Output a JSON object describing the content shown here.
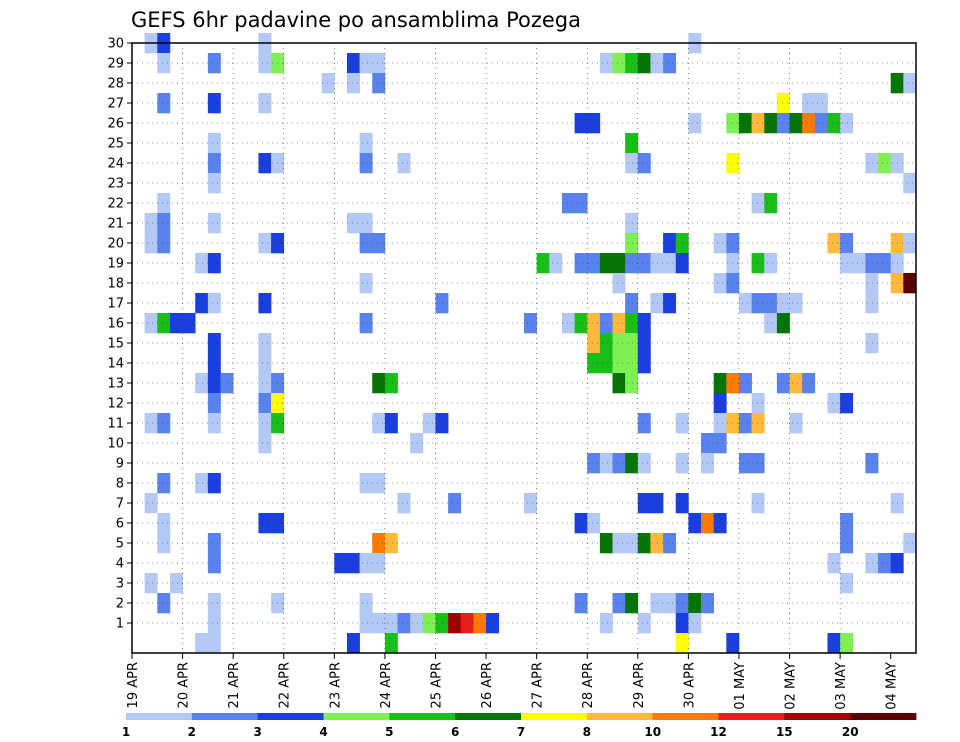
{
  "chart_data": {
    "type": "heatmap",
    "title": "GEFS 6hr padavine po ansamblima Pozega",
    "xlabel": "",
    "ylabel": "",
    "x_ticks": [
      "19 APR",
      "20 APR",
      "21 APR",
      "22 APR",
      "23 APR",
      "24 APR",
      "25 APR",
      "26 APR",
      "27 APR",
      "28 APR",
      "29 APR",
      "30 APR",
      "01 MAY",
      "02 MAY",
      "03 MAY",
      "04 MAY"
    ],
    "y_ticks": [
      "1",
      "2",
      "3",
      "4",
      "5",
      "6",
      "7",
      "8",
      "9",
      "10",
      "11",
      "12",
      "13",
      "14",
      "15",
      "16",
      "17",
      "18",
      "19",
      "20",
      "21",
      "22",
      "23",
      "24",
      "25",
      "26",
      "27",
      "28",
      "29",
      "30"
    ],
    "ylim": [
      0,
      30
    ],
    "xlim_steps": [
      0,
      61
    ],
    "steps_per_day": 4,
    "legend": {
      "position": "bottom",
      "labels": [
        "1",
        "2",
        "3",
        "4",
        "5",
        "6",
        "7",
        "8",
        "10",
        "12",
        "15",
        "20"
      ],
      "colors": [
        "#b3c8f5",
        "#5a82ec",
        "#1a3fdc",
        "#7ff054",
        "#19be19",
        "#067406",
        "#ffff00",
        "#ffb93c",
        "#ff7a00",
        "#e51e1e",
        "#a00000",
        "#5a0000"
      ]
    },
    "grid": true,
    "cells": [
      [
        1,
        30,
        1
      ],
      [
        2,
        30,
        3
      ],
      [
        10,
        30,
        1
      ],
      [
        44,
        30,
        1
      ],
      [
        2,
        29,
        1
      ],
      [
        6,
        29,
        2
      ],
      [
        10,
        29,
        1
      ],
      [
        11,
        29,
        4
      ],
      [
        17,
        29,
        3
      ],
      [
        18,
        29,
        1
      ],
      [
        19,
        29,
        1
      ],
      [
        37,
        29,
        1
      ],
      [
        38,
        29,
        4
      ],
      [
        39,
        29,
        5
      ],
      [
        40,
        29,
        6
      ],
      [
        41,
        29,
        1
      ],
      [
        42,
        29,
        2
      ],
      [
        15,
        28,
        1
      ],
      [
        17,
        28,
        1
      ],
      [
        19,
        28,
        2
      ],
      [
        60,
        28,
        6
      ],
      [
        61,
        28,
        1
      ],
      [
        2,
        27,
        2
      ],
      [
        6,
        27,
        3
      ],
      [
        10,
        27,
        1
      ],
      [
        51,
        27,
        7
      ],
      [
        53,
        27,
        1
      ],
      [
        54,
        27,
        1
      ],
      [
        35,
        26,
        3
      ],
      [
        36,
        26,
        3
      ],
      [
        44,
        26,
        1
      ],
      [
        47,
        26,
        4
      ],
      [
        48,
        26,
        6
      ],
      [
        49,
        26,
        8
      ],
      [
        50,
        26,
        6
      ],
      [
        51,
        26,
        2
      ],
      [
        52,
        26,
        6
      ],
      [
        53,
        26,
        9
      ],
      [
        54,
        26,
        2
      ],
      [
        55,
        26,
        5
      ],
      [
        56,
        26,
        1
      ],
      [
        6,
        25,
        1
      ],
      [
        18,
        25,
        1
      ],
      [
        39,
        25,
        5
      ],
      [
        6,
        24,
        2
      ],
      [
        10,
        24,
        3
      ],
      [
        11,
        24,
        1
      ],
      [
        18,
        24,
        2
      ],
      [
        21,
        24,
        1
      ],
      [
        39,
        24,
        1
      ],
      [
        40,
        24,
        2
      ],
      [
        47,
        24,
        7
      ],
      [
        58,
        24,
        1
      ],
      [
        59,
        24,
        4
      ],
      [
        60,
        24,
        1
      ],
      [
        6,
        23,
        1
      ],
      [
        61,
        23,
        1
      ],
      [
        2,
        22,
        1
      ],
      [
        34,
        22,
        2
      ],
      [
        35,
        22,
        2
      ],
      [
        49,
        22,
        1
      ],
      [
        50,
        22,
        5
      ],
      [
        1,
        21,
        1
      ],
      [
        2,
        21,
        2
      ],
      [
        6,
        21,
        1
      ],
      [
        17,
        21,
        1
      ],
      [
        18,
        21,
        1
      ],
      [
        39,
        21,
        1
      ],
      [
        1,
        20,
        1
      ],
      [
        2,
        20,
        2
      ],
      [
        10,
        20,
        1
      ],
      [
        11,
        20,
        3
      ],
      [
        18,
        20,
        2
      ],
      [
        19,
        20,
        2
      ],
      [
        39,
        20,
        4
      ],
      [
        42,
        20,
        3
      ],
      [
        43,
        20,
        5
      ],
      [
        46,
        20,
        1
      ],
      [
        47,
        20,
        2
      ],
      [
        55,
        20,
        8
      ],
      [
        56,
        20,
        2
      ],
      [
        60,
        20,
        8
      ],
      [
        61,
        20,
        1
      ],
      [
        5,
        19,
        1
      ],
      [
        6,
        19,
        3
      ],
      [
        32,
        19,
        5
      ],
      [
        33,
        19,
        1
      ],
      [
        35,
        19,
        2
      ],
      [
        36,
        19,
        2
      ],
      [
        37,
        19,
        6
      ],
      [
        38,
        19,
        6
      ],
      [
        39,
        19,
        2
      ],
      [
        40,
        19,
        2
      ],
      [
        41,
        19,
        1
      ],
      [
        42,
        19,
        1
      ],
      [
        43,
        19,
        3
      ],
      [
        47,
        19,
        1
      ],
      [
        49,
        19,
        5
      ],
      [
        50,
        19,
        1
      ],
      [
        56,
        19,
        1
      ],
      [
        57,
        19,
        1
      ],
      [
        58,
        19,
        2
      ],
      [
        59,
        19,
        2
      ],
      [
        60,
        19,
        1
      ],
      [
        18,
        18,
        1
      ],
      [
        38,
        18,
        1
      ],
      [
        46,
        18,
        1
      ],
      [
        47,
        18,
        2
      ],
      [
        58,
        18,
        1
      ],
      [
        60,
        18,
        8
      ],
      [
        61,
        18,
        12
      ],
      [
        5,
        17,
        3
      ],
      [
        6,
        17,
        1
      ],
      [
        10,
        17,
        3
      ],
      [
        24,
        17,
        2
      ],
      [
        39,
        17,
        2
      ],
      [
        41,
        17,
        1
      ],
      [
        42,
        17,
        3
      ],
      [
        48,
        17,
        1
      ],
      [
        49,
        17,
        2
      ],
      [
        50,
        17,
        2
      ],
      [
        51,
        17,
        1
      ],
      [
        52,
        17,
        1
      ],
      [
        58,
        17,
        1
      ],
      [
        1,
        16,
        1
      ],
      [
        2,
        16,
        5
      ],
      [
        3,
        16,
        3
      ],
      [
        4,
        16,
        3
      ],
      [
        18,
        16,
        2
      ],
      [
        31,
        16,
        2
      ],
      [
        34,
        16,
        1
      ],
      [
        35,
        16,
        5
      ],
      [
        36,
        16,
        8
      ],
      [
        37,
        16,
        2
      ],
      [
        38,
        16,
        8
      ],
      [
        39,
        16,
        5
      ],
      [
        40,
        16,
        3
      ],
      [
        50,
        16,
        1
      ],
      [
        51,
        16,
        6
      ],
      [
        6,
        15,
        3
      ],
      [
        10,
        15,
        1
      ],
      [
        36,
        15,
        8
      ],
      [
        37,
        15,
        5
      ],
      [
        38,
        15,
        4
      ],
      [
        39,
        15,
        4
      ],
      [
        40,
        15,
        3
      ],
      [
        58,
        15,
        1
      ],
      [
        6,
        14,
        3
      ],
      [
        10,
        14,
        1
      ],
      [
        36,
        14,
        5
      ],
      [
        37,
        14,
        5
      ],
      [
        38,
        14,
        4
      ],
      [
        39,
        14,
        4
      ],
      [
        40,
        14,
        3
      ],
      [
        5,
        13,
        1
      ],
      [
        6,
        13,
        3
      ],
      [
        7,
        13,
        2
      ],
      [
        10,
        13,
        1
      ],
      [
        11,
        13,
        2
      ],
      [
        19,
        13,
        6
      ],
      [
        20,
        13,
        5
      ],
      [
        38,
        13,
        6
      ],
      [
        39,
        13,
        4
      ],
      [
        46,
        13,
        6
      ],
      [
        47,
        13,
        9
      ],
      [
        48,
        13,
        2
      ],
      [
        51,
        13,
        2
      ],
      [
        52,
        13,
        8
      ],
      [
        53,
        13,
        2
      ],
      [
        6,
        12,
        2
      ],
      [
        10,
        12,
        2
      ],
      [
        11,
        12,
        7
      ],
      [
        46,
        12,
        3
      ],
      [
        49,
        12,
        1
      ],
      [
        55,
        12,
        1
      ],
      [
        56,
        12,
        3
      ],
      [
        1,
        11,
        1
      ],
      [
        2,
        11,
        2
      ],
      [
        6,
        11,
        1
      ],
      [
        10,
        11,
        1
      ],
      [
        11,
        11,
        5
      ],
      [
        19,
        11,
        1
      ],
      [
        20,
        11,
        3
      ],
      [
        23,
        11,
        1
      ],
      [
        24,
        11,
        3
      ],
      [
        40,
        11,
        2
      ],
      [
        43,
        11,
        1
      ],
      [
        46,
        11,
        1
      ],
      [
        47,
        11,
        8
      ],
      [
        48,
        11,
        2
      ],
      [
        49,
        11,
        8
      ],
      [
        52,
        11,
        1
      ],
      [
        10,
        10,
        1
      ],
      [
        22,
        10,
        1
      ],
      [
        45,
        10,
        2
      ],
      [
        46,
        10,
        2
      ],
      [
        36,
        9,
        2
      ],
      [
        37,
        9,
        1
      ],
      [
        38,
        9,
        2
      ],
      [
        39,
        9,
        6
      ],
      [
        40,
        9,
        1
      ],
      [
        43,
        9,
        1
      ],
      [
        45,
        9,
        1
      ],
      [
        48,
        9,
        2
      ],
      [
        49,
        9,
        2
      ],
      [
        58,
        9,
        2
      ],
      [
        2,
        8,
        2
      ],
      [
        5,
        8,
        1
      ],
      [
        6,
        8,
        3
      ],
      [
        18,
        8,
        1
      ],
      [
        19,
        8,
        1
      ],
      [
        1,
        7,
        1
      ],
      [
        21,
        7,
        1
      ],
      [
        25,
        7,
        2
      ],
      [
        31,
        7,
        1
      ],
      [
        40,
        7,
        3
      ],
      [
        41,
        7,
        3
      ],
      [
        43,
        7,
        3
      ],
      [
        49,
        7,
        1
      ],
      [
        60,
        7,
        1
      ],
      [
        2,
        6,
        1
      ],
      [
        10,
        6,
        3
      ],
      [
        11,
        6,
        3
      ],
      [
        35,
        6,
        3
      ],
      [
        36,
        6,
        1
      ],
      [
        44,
        6,
        3
      ],
      [
        45,
        6,
        9
      ],
      [
        46,
        6,
        3
      ],
      [
        56,
        6,
        2
      ],
      [
        2,
        5,
        1
      ],
      [
        6,
        5,
        2
      ],
      [
        19,
        5,
        9
      ],
      [
        20,
        5,
        8
      ],
      [
        37,
        5,
        6
      ],
      [
        38,
        5,
        1
      ],
      [
        39,
        5,
        1
      ],
      [
        40,
        5,
        6
      ],
      [
        41,
        5,
        8
      ],
      [
        42,
        5,
        2
      ],
      [
        56,
        5,
        2
      ],
      [
        61,
        5,
        1
      ],
      [
        6,
        4,
        2
      ],
      [
        16,
        4,
        3
      ],
      [
        17,
        4,
        3
      ],
      [
        18,
        4,
        1
      ],
      [
        19,
        4,
        1
      ],
      [
        55,
        4,
        1
      ],
      [
        58,
        4,
        1
      ],
      [
        59,
        4,
        2
      ],
      [
        60,
        4,
        3
      ],
      [
        1,
        3,
        1
      ],
      [
        3,
        3,
        1
      ],
      [
        56,
        3,
        1
      ],
      [
        2,
        2,
        2
      ],
      [
        6,
        2,
        1
      ],
      [
        11,
        2,
        1
      ],
      [
        18,
        2,
        1
      ],
      [
        35,
        2,
        2
      ],
      [
        38,
        2,
        2
      ],
      [
        39,
        2,
        6
      ],
      [
        41,
        2,
        1
      ],
      [
        42,
        2,
        1
      ],
      [
        43,
        2,
        2
      ],
      [
        44,
        2,
        6
      ],
      [
        45,
        2,
        2
      ],
      [
        6,
        1,
        1
      ],
      [
        18,
        1,
        1
      ],
      [
        19,
        1,
        1
      ],
      [
        20,
        1,
        1
      ],
      [
        21,
        1,
        2
      ],
      [
        22,
        1,
        1
      ],
      [
        23,
        1,
        4
      ],
      [
        24,
        1,
        5
      ],
      [
        25,
        1,
        11
      ],
      [
        26,
        1,
        10
      ],
      [
        27,
        1,
        9
      ],
      [
        28,
        1,
        3
      ],
      [
        37,
        1,
        1
      ],
      [
        40,
        1,
        1
      ],
      [
        43,
        1,
        3
      ],
      [
        44,
        1,
        1
      ],
      [
        5,
        0,
        1
      ],
      [
        6,
        0,
        1
      ],
      [
        17,
        0,
        3
      ],
      [
        20,
        0,
        5
      ],
      [
        43,
        0,
        7
      ],
      [
        47,
        0,
        3
      ],
      [
        55,
        0,
        3
      ],
      [
        56,
        0,
        4
      ]
    ]
  }
}
